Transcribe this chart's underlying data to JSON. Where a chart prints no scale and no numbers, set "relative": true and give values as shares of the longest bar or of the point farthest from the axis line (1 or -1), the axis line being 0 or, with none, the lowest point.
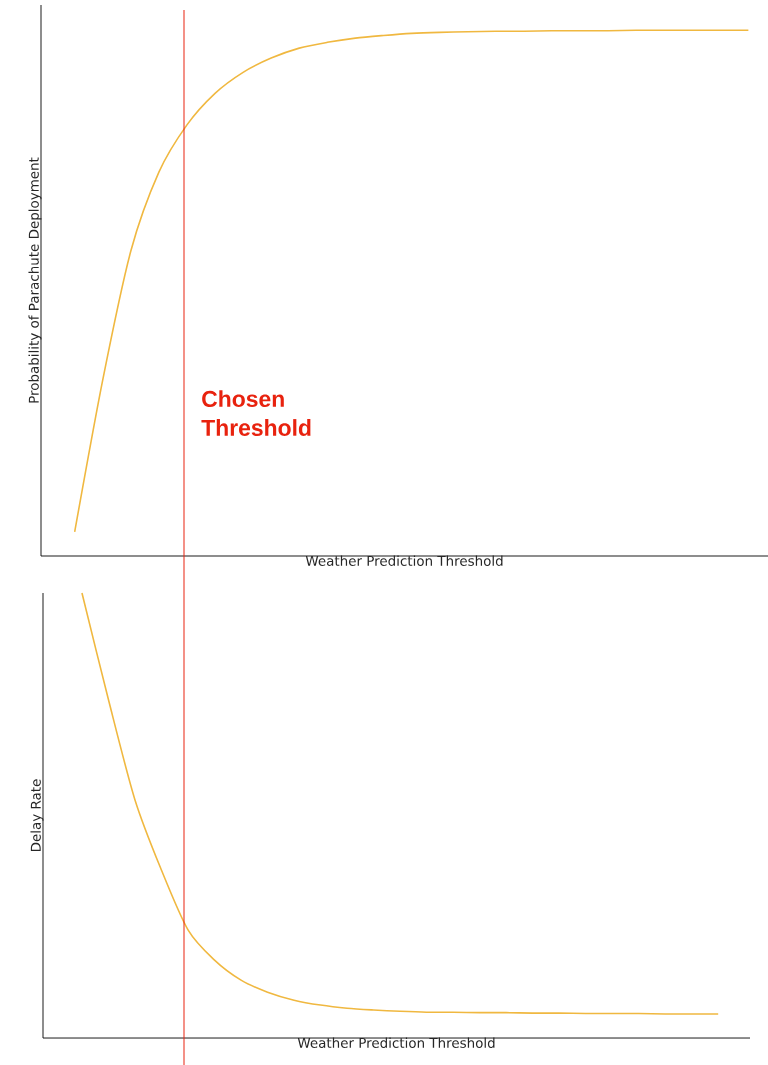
{
  "chart_data": [
    {
      "type": "line",
      "relative": true,
      "xlabel": "Weather Prediction Threshold",
      "ylabel": "Probability of Parachute Deployment",
      "categories": [
        null,
        null,
        null,
        null,
        null,
        null,
        null,
        null,
        null,
        null,
        null,
        null,
        null,
        null,
        null,
        null,
        null,
        null,
        null,
        null,
        null,
        null,
        null,
        null,
        null
      ],
      "series": [
        {
          "color": "#f0b840",
          "values": [
            0.046,
            0.335,
            0.58,
            0.73,
            0.82,
            0.88,
            0.92,
            0.947,
            0.966,
            0.977,
            0.985,
            0.99,
            0.994,
            0.996,
            0.997,
            0.998,
            0.998,
            0.999,
            0.999,
            0.999,
            1,
            1,
            1,
            1,
            1
          ]
        }
      ],
      "annotations": [
        "Chosen Threshold"
      ]
    },
    {
      "type": "line",
      "relative": true,
      "xlabel": "Weather Prediction Threshold",
      "ylabel": "Delay Rate",
      "categories": [
        null,
        null,
        null,
        null,
        null,
        null,
        null,
        null,
        null,
        null,
        null,
        null,
        null,
        null,
        null,
        null,
        null,
        null,
        null,
        null,
        null,
        null,
        null,
        null,
        null
      ],
      "series": [
        {
          "color": "#f0b840",
          "values": [
            1,
            0.76,
            0.535,
            0.377,
            0.243,
            0.175,
            0.13,
            0.103,
            0.085,
            0.074,
            0.067,
            0.063,
            0.06,
            0.058,
            0.058,
            0.057,
            0.057,
            0.056,
            0.056,
            0.055,
            0.055,
            0.055,
            0.054,
            0.054,
            0.054
          ]
        }
      ]
    }
  ]
}
